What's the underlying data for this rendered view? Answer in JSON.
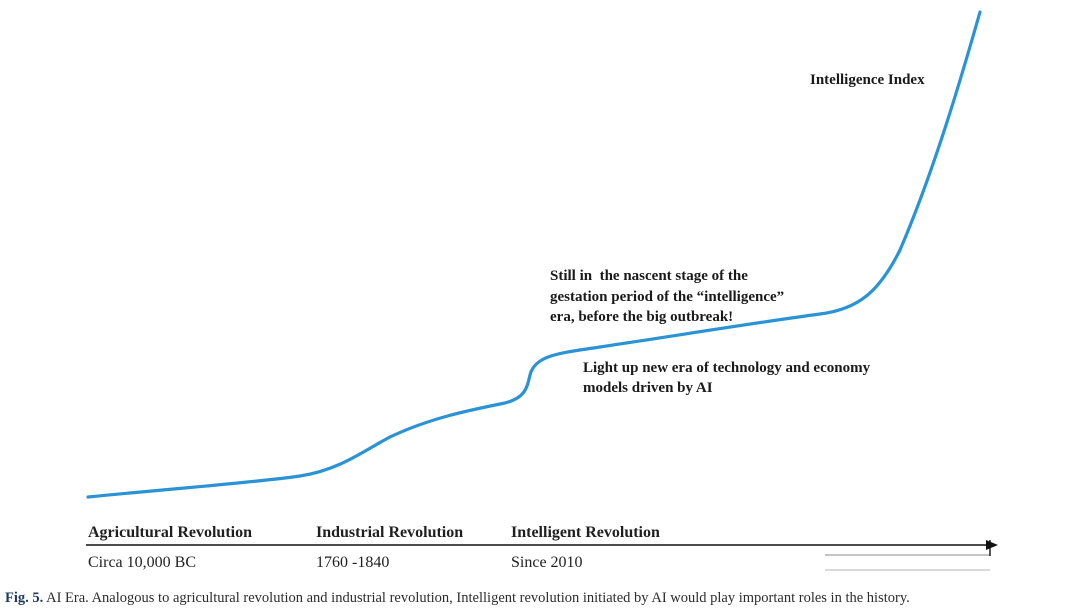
{
  "diagram": {
    "curve_color": "#2a93d5",
    "axis_color": "#111111",
    "curve_label": "Intelligence Index",
    "annotation_nascent": [
      "Still in  the nascent stage of the",
      "gestation period of the “intelligence”",
      "era, before the big outbreak!"
    ],
    "annotation_new_era": [
      "Light up new era of technology and economy",
      "models driven by AI"
    ],
    "eras": [
      {
        "name": "Agricultural Revolution",
        "date": "Circa 10,000 BC"
      },
      {
        "name": "Industrial Revolution",
        "date": "1760 -1840"
      },
      {
        "name": "Intelligent Revolution",
        "date": "Since 2010"
      }
    ]
  },
  "caption": {
    "label": "Fig. 5.",
    "text": "AI Era. Analogous to agricultural revolution and industrial revolution, Intelligent revolution initiated by AI would play important roles in the history."
  }
}
